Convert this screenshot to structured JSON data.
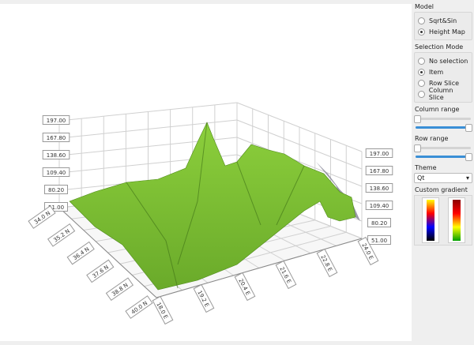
{
  "graph": {
    "surface_color": "#6aaa2a",
    "value_axis_labels": [
      "197.00",
      "167.80",
      "138.60",
      "109.40",
      "80.20",
      "51.00"
    ],
    "latitude_axis_labels": [
      "34.0 N",
      "35.2 N",
      "36.4 N",
      "37.6 N",
      "38.8 N",
      "40.0 N"
    ],
    "longitude_axis_labels": [
      "18.0 E",
      "19.2 E",
      "20.4 E",
      "21.6 E",
      "22.8 E",
      "24.0 E"
    ]
  },
  "panel": {
    "model_label": "Model",
    "model_options": [
      {
        "label": "Sqrt&Sin",
        "checked": false
      },
      {
        "label": "Height Map",
        "checked": true
      }
    ],
    "selection_label": "Selection Mode",
    "selection_options": [
      {
        "label": "No selection",
        "checked": false
      },
      {
        "label": "Item",
        "checked": true
      },
      {
        "label": "Row Slice",
        "checked": false
      },
      {
        "label": "Column Slice",
        "checked": false
      }
    ],
    "column_range_label": "Column range",
    "row_range_label": "Row range",
    "theme_label": "Theme",
    "theme_value": "Qt",
    "gradient_label": "Custom gradient",
    "gradients": [
      [
        "#ffff00",
        "#ff0000",
        "#0000ff",
        "#000000"
      ],
      [
        "#8b0000",
        "#ff0000",
        "#ffff00",
        "#00a000"
      ]
    ]
  }
}
